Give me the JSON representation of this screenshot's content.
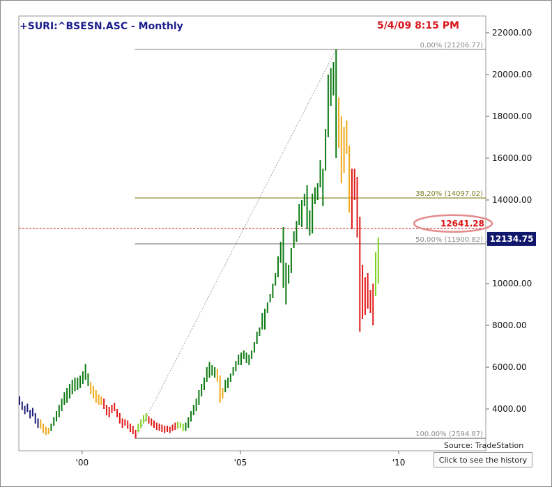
{
  "header": {
    "title": "+SURI:^BSESN.ASC - Monthly",
    "timestamp": "5/4/09 8:15 PM"
  },
  "footer": {
    "source": "Source: TradeStation",
    "history_button": "Click to see the history"
  },
  "colors": {
    "up_dark": "#0c7a12",
    "up_light": "#7ed321",
    "down_orange": "#f0a818",
    "down_red": "#e01818",
    "base_blue": "#1c1c78",
    "fib_0": "#888888",
    "fib_382": "#8a8a2a",
    "fib_50": "#888888",
    "fib_100": "#888888",
    "current_line": "#cc2222",
    "last_price_bg": "#10186b"
  },
  "chart_data": {
    "type": "bar",
    "title": "+SURI:^BSESN.ASC - Monthly",
    "x_ticks": [
      "'00",
      "'05",
      "'10"
    ],
    "y_ticks": [
      "4000.00",
      "6000.00",
      "8000.00",
      "10000.00",
      "12000.00",
      "14000.00",
      "16000.00",
      "18000.00",
      "20000.00",
      "22000.00"
    ],
    "ylim": [
      2000,
      22800
    ],
    "x_range": [
      "1998-01",
      "2012-10"
    ],
    "fib_levels": [
      {
        "label": "0.00% (21206.77)",
        "value": 21206.77
      },
      {
        "label": "38.20% (14097.02)",
        "value": 14097.02
      },
      {
        "label": "50.00% (11900.82)",
        "value": 11900.82
      },
      {
        "label": "100.00% (2594.87)",
        "value": 2594.87
      }
    ],
    "fib_anchor_low": {
      "date": "2001-09",
      "value": 2594.87
    },
    "fib_anchor_high": {
      "date": "2008-01",
      "value": 21206.77
    },
    "current_level": "12641.28",
    "last_price": "12134.75",
    "series": [
      {
        "color_key": "base_blue",
        "points": [
          [
            "1998-01",
            4200,
            4600
          ],
          [
            "1998-02",
            3950,
            4350
          ],
          [
            "1998-03",
            3750,
            4150
          ],
          [
            "1998-04",
            3850,
            4250
          ],
          [
            "1998-05",
            3550,
            3950
          ],
          [
            "1998-06",
            3650,
            4050
          ],
          [
            "1998-07",
            3300,
            3800
          ],
          [
            "1998-08",
            3100,
            3550
          ]
        ]
      },
      {
        "color_key": "down_orange",
        "points": [
          [
            "1998-09",
            3050,
            3500
          ],
          [
            "1998-10",
            2850,
            3300
          ],
          [
            "1998-11",
            2750,
            3150
          ],
          [
            "1998-12",
            2800,
            3100
          ]
        ]
      },
      {
        "color_key": "up_dark",
        "points": [
          [
            "1999-01",
            2950,
            3300
          ],
          [
            "1999-02",
            3200,
            3600
          ],
          [
            "1999-03",
            3400,
            3900
          ],
          [
            "1999-04",
            3600,
            4200
          ],
          [
            "1999-05",
            3900,
            4500
          ],
          [
            "1999-06",
            4200,
            4800
          ],
          [
            "1999-07",
            4300,
            5000
          ],
          [
            "1999-08",
            4500,
            5200
          ],
          [
            "1999-09",
            4700,
            5400
          ],
          [
            "1999-10",
            4850,
            5500
          ],
          [
            "1999-11",
            4900,
            5500
          ],
          [
            "1999-12",
            5000,
            5600
          ],
          [
            "2000-01",
            5200,
            5800
          ],
          [
            "2000-02",
            5400,
            6150
          ],
          [
            "2000-03",
            5100,
            5700
          ]
        ]
      },
      {
        "color_key": "down_orange",
        "points": [
          [
            "2000-04",
            4700,
            5300
          ],
          [
            "2000-05",
            4500,
            5100
          ],
          [
            "2000-06",
            4300,
            4900
          ],
          [
            "2000-07",
            4200,
            4700
          ],
          [
            "2000-08",
            4200,
            4600
          ]
        ]
      },
      {
        "color_key": "down_red",
        "points": [
          [
            "2000-09",
            4000,
            4500
          ],
          [
            "2000-10",
            3700,
            4200
          ],
          [
            "2000-11",
            3600,
            4100
          ],
          [
            "2000-12",
            3800,
            4200
          ],
          [
            "2001-01",
            3900,
            4300
          ],
          [
            "2001-02",
            3600,
            4000
          ],
          [
            "2001-03",
            3300,
            3800
          ],
          [
            "2001-04",
            3100,
            3550
          ],
          [
            "2001-05",
            3200,
            3500
          ],
          [
            "2001-06",
            3050,
            3450
          ],
          [
            "2001-07",
            2900,
            3300
          ],
          [
            "2001-08",
            2800,
            3200
          ],
          [
            "2001-09",
            2594,
            3000
          ]
        ]
      },
      {
        "color_key": "up_light",
        "points": [
          [
            "2001-10",
            2900,
            3300
          ],
          [
            "2001-11",
            3100,
            3500
          ],
          [
            "2001-12",
            3300,
            3700
          ],
          [
            "2002-01",
            3400,
            3800
          ]
        ]
      },
      {
        "color_key": "down_red",
        "points": [
          [
            "2002-02",
            3300,
            3650
          ],
          [
            "2002-03",
            3200,
            3550
          ],
          [
            "2002-04",
            3100,
            3450
          ],
          [
            "2002-05",
            3000,
            3350
          ],
          [
            "2002-06",
            2950,
            3300
          ],
          [
            "2002-07",
            2900,
            3250
          ],
          [
            "2002-08",
            2850,
            3200
          ],
          [
            "2002-09",
            2900,
            3200
          ],
          [
            "2002-10",
            2850,
            3150
          ],
          [
            "2002-11",
            2950,
            3250
          ],
          [
            "2002-12",
            3000,
            3350
          ]
        ]
      },
      {
        "color_key": "up_light",
        "points": [
          [
            "2003-01",
            3050,
            3400
          ],
          [
            "2003-02",
            3100,
            3350
          ],
          [
            "2003-03",
            2950,
            3300
          ]
        ]
      },
      {
        "color_key": "up_dark",
        "points": [
          [
            "2003-04",
            2950,
            3350
          ],
          [
            "2003-05",
            3100,
            3600
          ],
          [
            "2003-06",
            3400,
            3900
          ],
          [
            "2003-07",
            3700,
            4200
          ],
          [
            "2003-08",
            3900,
            4500
          ],
          [
            "2003-09",
            4200,
            4900
          ],
          [
            "2003-10",
            4600,
            5200
          ],
          [
            "2003-11",
            4900,
            5500
          ],
          [
            "2003-12",
            5300,
            6000
          ],
          [
            "2004-01",
            5500,
            6250
          ],
          [
            "2004-02",
            5600,
            6100
          ],
          [
            "2004-03",
            5500,
            6000
          ]
        ]
      },
      {
        "color_key": "down_orange",
        "points": [
          [
            "2004-04",
            5300,
            5900
          ],
          [
            "2004-05",
            4300,
            5600
          ],
          [
            "2004-06",
            4500,
            5000
          ]
        ]
      },
      {
        "color_key": "up_dark",
        "points": [
          [
            "2004-07",
            4800,
            5400
          ],
          [
            "2004-08",
            5000,
            5500
          ],
          [
            "2004-09",
            5300,
            5700
          ],
          [
            "2004-10",
            5600,
            6000
          ],
          [
            "2004-11",
            5800,
            6300
          ],
          [
            "2004-12",
            6100,
            6600
          ],
          [
            "2005-01",
            6100,
            6700
          ],
          [
            "2005-02",
            6400,
            6800
          ],
          [
            "2005-03",
            6200,
            6700
          ],
          [
            "2005-04",
            6100,
            6600
          ],
          [
            "2005-05",
            6400,
            6800
          ],
          [
            "2005-06",
            6700,
            7200
          ],
          [
            "2005-07",
            7100,
            7700
          ],
          [
            "2005-08",
            7500,
            7900
          ],
          [
            "2005-09",
            7800,
            8600
          ],
          [
            "2005-10",
            7800,
            8800
          ],
          [
            "2005-11",
            8600,
            9100
          ],
          [
            "2005-12",
            9100,
            9500
          ],
          [
            "2006-01",
            9300,
            10000
          ],
          [
            "2006-02",
            9900,
            10500
          ],
          [
            "2006-03",
            10300,
            11300
          ],
          [
            "2006-04",
            11000,
            12000
          ],
          [
            "2006-05",
            9800,
            12700
          ],
          [
            "2006-06",
            9000,
            11000
          ],
          [
            "2006-07",
            10000,
            10900
          ],
          [
            "2006-08",
            10500,
            11700
          ],
          [
            "2006-09",
            11700,
            12500
          ],
          [
            "2006-10",
            12000,
            13000
          ],
          [
            "2006-11",
            12800,
            13800
          ],
          [
            "2006-12",
            12700,
            14000
          ],
          [
            "2007-01",
            13700,
            14300
          ],
          [
            "2007-02",
            12600,
            14700
          ],
          [
            "2007-03",
            12300,
            13500
          ],
          [
            "2007-04",
            12400,
            14300
          ],
          [
            "2007-05",
            13800,
            14600
          ],
          [
            "2007-06",
            14000,
            14800
          ],
          [
            "2007-07",
            14600,
            15900
          ],
          [
            "2007-08",
            13700,
            15500
          ],
          [
            "2007-09",
            15400,
            17400
          ],
          [
            "2007-10",
            17000,
            20000
          ],
          [
            "2007-11",
            18500,
            20300
          ],
          [
            "2007-12",
            19000,
            20600
          ],
          [
            "2008-01",
            16000,
            21206
          ]
        ]
      },
      {
        "color_key": "down_orange",
        "points": [
          [
            "2008-02",
            16500,
            18900
          ],
          [
            "2008-03",
            14800,
            18000
          ],
          [
            "2008-04",
            15300,
            17500
          ],
          [
            "2008-05",
            16200,
            17800
          ],
          [
            "2008-06",
            13400,
            16600
          ]
        ]
      },
      {
        "color_key": "down_red",
        "points": [
          [
            "2008-07",
            12600,
            15500
          ],
          [
            "2008-08",
            14000,
            15500
          ],
          [
            "2008-09",
            12200,
            15100
          ],
          [
            "2008-10",
            7700,
            13200
          ],
          [
            "2008-11",
            8300,
            10900
          ],
          [
            "2008-12",
            8500,
            10300
          ],
          [
            "2009-01",
            8800,
            10500
          ],
          [
            "2009-02",
            8600,
            9700
          ],
          [
            "2009-03",
            8000,
            10000
          ]
        ]
      },
      {
        "color_key": "up_light",
        "points": [
          [
            "2009-04",
            9400,
            11500
          ],
          [
            "2009-05",
            10000,
            12200
          ]
        ]
      }
    ]
  }
}
